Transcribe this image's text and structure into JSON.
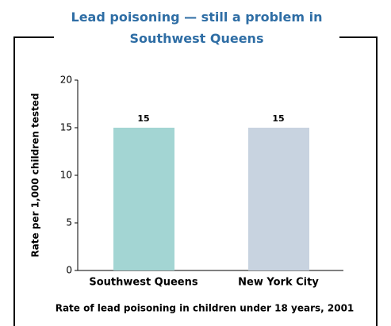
{
  "chart_data": {
    "type": "bar",
    "title": "Lead poisoning — still a problem in Southwest Queens",
    "y_label": "Rate per 1,000 children tested",
    "x_label": "Rate of lead poisoning in children under 18 years, 2001",
    "categories": [
      "Southwest Queens",
      "New York City"
    ],
    "values": [
      15,
      15
    ],
    "colors": [
      "#a3d5d3",
      "#c8d3e0"
    ],
    "ylim": [
      0,
      20
    ],
    "yticks": [
      0,
      5,
      10,
      15,
      20
    ],
    "grid": false
  }
}
